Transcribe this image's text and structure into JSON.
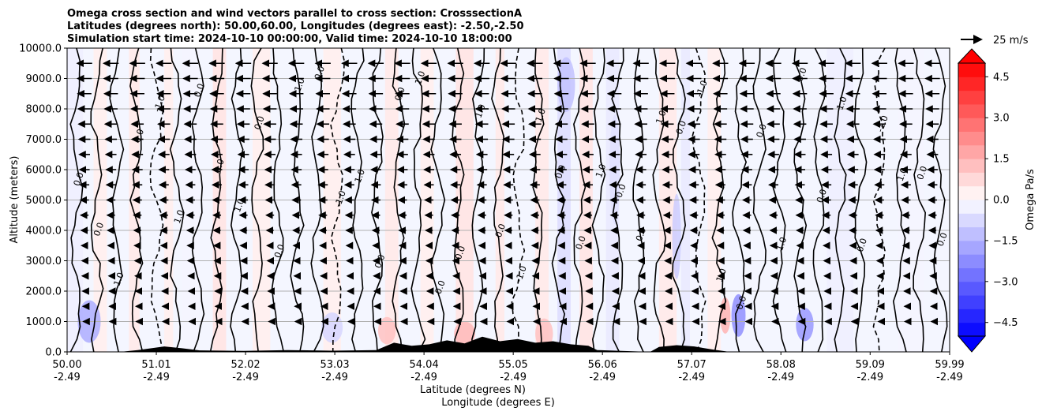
{
  "chart_data": {
    "type": "heatmap",
    "title_lines": [
      "Omega cross section and wind vectors parallel to cross section: CrosssectionA",
      "Latitudes (degrees north): 50.00,60.00, Longitudes (degrees east): -2.50,-2.50",
      "Simulation start time: 2024-10-10 00:00:00, Valid time: 2024-10-10 18:00:00"
    ],
    "xlabel_lines": [
      "Latitude (degrees N)",
      "Longitude (degrees E)"
    ],
    "ylabel": "Altitude (meters)",
    "x_range": [
      50.0,
      59.99
    ],
    "ylim": [
      0,
      10000
    ],
    "x_ticks": [
      {
        "lat": "50.00",
        "lon": "-2.49",
        "v": 50.0
      },
      {
        "lat": "51.01",
        "lon": "-2.49",
        "v": 51.01
      },
      {
        "lat": "52.02",
        "lon": "-2.49",
        "v": 52.02
      },
      {
        "lat": "53.03",
        "lon": "-2.49",
        "v": 53.03
      },
      {
        "lat": "54.04",
        "lon": "-2.49",
        "v": 54.04
      },
      {
        "lat": "55.05",
        "lon": "-2.49",
        "v": 55.05
      },
      {
        "lat": "56.06",
        "lon": "-2.49",
        "v": 56.06
      },
      {
        "lat": "57.07",
        "lon": "-2.49",
        "v": 57.07
      },
      {
        "lat": "58.08",
        "lon": "-2.49",
        "v": 58.08
      },
      {
        "lat": "59.09",
        "lon": "-2.49",
        "v": 59.09
      },
      {
        "lat": "59.99",
        "lon": "-2.49",
        "v": 59.99
      }
    ],
    "y_ticks": [
      {
        "label": "0.0",
        "v": 0
      },
      {
        "label": "1000.0",
        "v": 1000
      },
      {
        "label": "2000.0",
        "v": 2000
      },
      {
        "label": "3000.0",
        "v": 3000
      },
      {
        "label": "4000.0",
        "v": 4000
      },
      {
        "label": "5000.0",
        "v": 5000
      },
      {
        "label": "6000.0",
        "v": 6000
      },
      {
        "label": "7000.0",
        "v": 7000
      },
      {
        "label": "8000.0",
        "v": 8000
      },
      {
        "label": "9000.0",
        "v": 9000
      },
      {
        "label": "10000.0",
        "v": 10000
      }
    ],
    "colorbar": {
      "label": "Omega Pa/s",
      "range": [
        -5.0,
        5.0
      ],
      "ticks": [
        {
          "label": "4.5",
          "v": 4.5
        },
        {
          "label": "3.0",
          "v": 3.0
        },
        {
          "label": "1.5",
          "v": 1.5
        },
        {
          "label": "0.0",
          "v": 0.0
        },
        {
          "label": "−1.5",
          "v": -1.5
        },
        {
          "label": "−3.0",
          "v": -3.0
        },
        {
          "label": "−4.5",
          "v": -4.5
        }
      ]
    },
    "quiver_key": "25 m/s",
    "omega_bands": [
      {
        "x0": 50.0,
        "x1": 50.18,
        "omega": -0.3
      },
      {
        "x0": 50.3,
        "x1": 50.45,
        "omega": 0.3
      },
      {
        "x0": 50.7,
        "x1": 50.82,
        "omega": 0.4
      },
      {
        "x0": 51.1,
        "x1": 51.2,
        "omega": 0.3
      },
      {
        "x0": 51.3,
        "x1": 51.5,
        "omega": -0.2
      },
      {
        "x0": 51.65,
        "x1": 51.8,
        "omega": 0.5
      },
      {
        "x0": 52.1,
        "x1": 52.3,
        "omega": 0.3
      },
      {
        "x0": 52.9,
        "x1": 53.1,
        "omega": 0.3
      },
      {
        "x0": 53.6,
        "x1": 53.75,
        "omega": 0.4
      },
      {
        "x0": 54.0,
        "x1": 54.15,
        "omega": 0.3
      },
      {
        "x0": 54.4,
        "x1": 54.6,
        "omega": 0.5
      },
      {
        "x0": 54.85,
        "x1": 54.95,
        "omega": 0.4
      },
      {
        "x0": 55.3,
        "x1": 55.45,
        "omega": 0.4
      },
      {
        "x0": 55.55,
        "x1": 55.7,
        "omega": -0.6
      },
      {
        "x0": 55.8,
        "x1": 55.95,
        "omega": 0.5
      },
      {
        "x0": 56.1,
        "x1": 56.25,
        "omega": -0.4
      },
      {
        "x0": 56.7,
        "x1": 56.9,
        "omega": 0.4
      },
      {
        "x0": 56.95,
        "x1": 57.05,
        "omega": -0.4
      },
      {
        "x0": 57.25,
        "x1": 57.4,
        "omega": 0.3
      },
      {
        "x0": 58.6,
        "x1": 58.9,
        "omega": -0.3
      },
      {
        "x0": 59.4,
        "x1": 59.7,
        "omega": -0.2
      }
    ],
    "omega_blobs": [
      {
        "x": 50.25,
        "y": 1000,
        "rx": 0.13,
        "ry": 700,
        "omega": -1.6
      },
      {
        "x": 53.0,
        "y": 800,
        "rx": 0.12,
        "ry": 500,
        "omega": -0.8
      },
      {
        "x": 53.62,
        "y": 700,
        "rx": 0.1,
        "ry": 450,
        "omega": 1.2
      },
      {
        "x": 54.5,
        "y": 600,
        "rx": 0.12,
        "ry": 400,
        "omega": 1.4
      },
      {
        "x": 55.4,
        "y": 600,
        "rx": 0.1,
        "ry": 500,
        "omega": 1.2
      },
      {
        "x": 55.65,
        "y": 8800,
        "rx": 0.1,
        "ry": 900,
        "omega": -1.2
      },
      {
        "x": 56.9,
        "y": 3800,
        "rx": 0.05,
        "ry": 1400,
        "omega": -1.0
      },
      {
        "x": 57.45,
        "y": 1200,
        "rx": 0.06,
        "ry": 600,
        "omega": 1.5
      },
      {
        "x": 57.6,
        "y": 1200,
        "rx": 0.08,
        "ry": 700,
        "omega": -2.2
      },
      {
        "x": 58.35,
        "y": 900,
        "rx": 0.1,
        "ry": 550,
        "omega": -2.0
      },
      {
        "x": 56.2,
        "y": 6000,
        "rx": 0.06,
        "ry": 1800,
        "omega": -0.6
      }
    ],
    "contour_level_labels": [
      "0.0",
      "-1.0",
      "1.0",
      "-2.0"
    ],
    "terrain_profile": [
      {
        "x": 50.0,
        "h": 0
      },
      {
        "x": 50.6,
        "h": 0
      },
      {
        "x": 50.8,
        "h": 60
      },
      {
        "x": 51.1,
        "h": 180
      },
      {
        "x": 51.3,
        "h": 120
      },
      {
        "x": 51.5,
        "h": 50
      },
      {
        "x": 52.0,
        "h": 30
      },
      {
        "x": 52.5,
        "h": 60
      },
      {
        "x": 53.0,
        "h": 40
      },
      {
        "x": 53.5,
        "h": 60
      },
      {
        "x": 53.7,
        "h": 300
      },
      {
        "x": 53.9,
        "h": 200
      },
      {
        "x": 54.1,
        "h": 250
      },
      {
        "x": 54.3,
        "h": 380
      },
      {
        "x": 54.5,
        "h": 280
      },
      {
        "x": 54.7,
        "h": 500
      },
      {
        "x": 54.9,
        "h": 350
      },
      {
        "x": 55.1,
        "h": 420
      },
      {
        "x": 55.3,
        "h": 300
      },
      {
        "x": 55.5,
        "h": 350
      },
      {
        "x": 55.7,
        "h": 250
      },
      {
        "x": 55.9,
        "h": 200
      },
      {
        "x": 56.0,
        "h": 60
      },
      {
        "x": 56.6,
        "h": 0
      },
      {
        "x": 56.7,
        "h": 160
      },
      {
        "x": 56.9,
        "h": 220
      },
      {
        "x": 57.1,
        "h": 180
      },
      {
        "x": 57.3,
        "h": 80
      },
      {
        "x": 57.5,
        "h": 0
      },
      {
        "x": 59.99,
        "h": 0
      }
    ],
    "wind": {
      "rows_m": [
        9500,
        9000,
        8500,
        8000,
        7500,
        7000,
        6500,
        6000,
        5500,
        5000,
        4500,
        4000,
        3500,
        3000,
        2500,
        2000,
        1500,
        1000
      ],
      "cols_deg": [
        50.2,
        50.5,
        50.8,
        51.1,
        51.4,
        51.7,
        52.0,
        52.3,
        52.6,
        52.9,
        53.2,
        53.5,
        53.8,
        54.1,
        54.4,
        54.7,
        55.0,
        55.3,
        55.6,
        55.9,
        56.2,
        56.5,
        56.8,
        57.1,
        57.4,
        57.7,
        58.0,
        58.3,
        58.6,
        58.9,
        59.2,
        59.5,
        59.8
      ],
      "speed_top_ms": 18,
      "speed_bottom_ms": 3,
      "direction": "westward"
    }
  },
  "colors": {
    "positive": "#ff0000",
    "negative": "#0000ff",
    "terrain": "#000000",
    "grid": "#b0b0b0"
  }
}
